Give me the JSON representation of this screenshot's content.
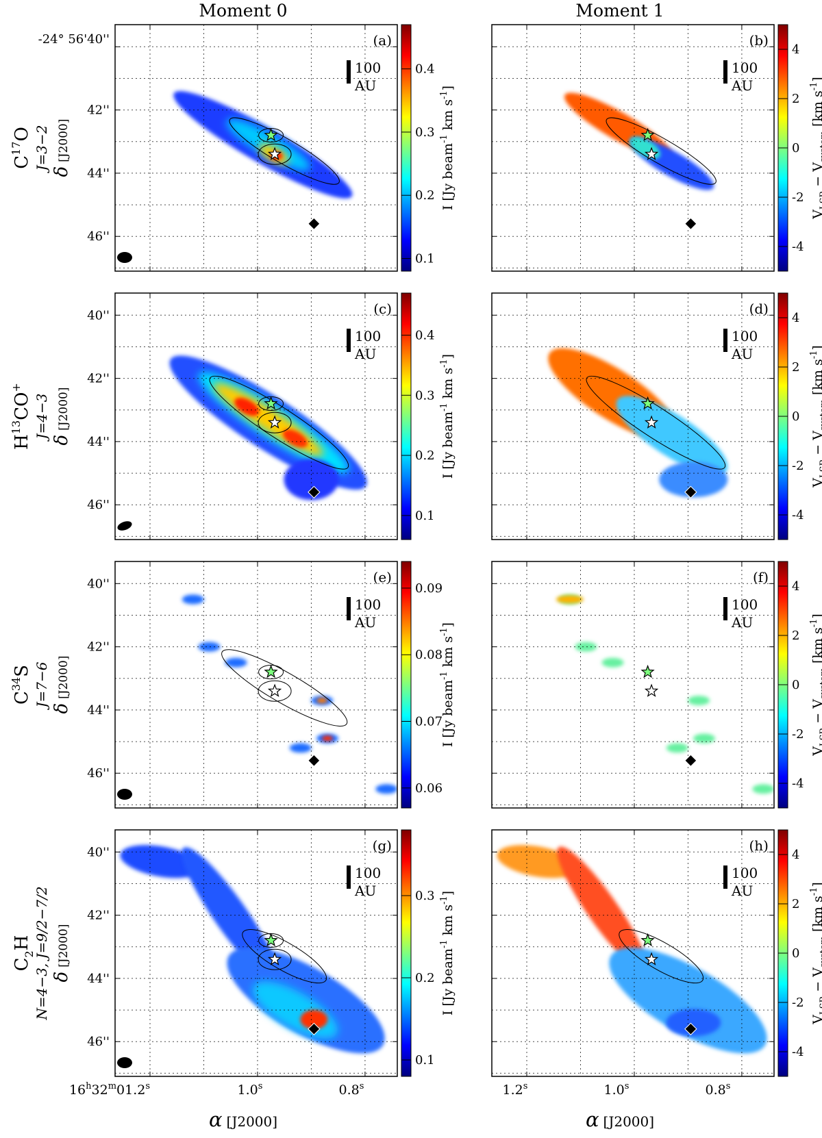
{
  "chart_data": {
    "type": "heatmap",
    "column_titles": [
      "Moment 0",
      "Moment 1"
    ],
    "x_axis": {
      "label": "α",
      "label_sub": "[J2000]",
      "left_tick_labels": {
        "prefix": "16",
        "h": "h",
        "mid": "32",
        "m": "m",
        "sec": "01.2",
        "s": "s",
        "t2": "1.0",
        "t3": "0.8"
      },
      "right_tick_labels": [
        "1.2",
        "1.0",
        "0.8"
      ],
      "ticks_s": [
        1.2,
        1.0,
        0.8
      ],
      "range_s": [
        1.265,
        0.74
      ]
    },
    "y_axis": {
      "label": "δ",
      "label_sub": "[J2000]",
      "dec_prefix": "-24° 56'40''",
      "ticks_arcsec": [
        40,
        42,
        44,
        46
      ],
      "tick_labels": [
        "40''",
        "42''",
        "44''",
        "46''"
      ],
      "range_arcsec": [
        39.3,
        47.1
      ]
    },
    "scale_bar": {
      "value": "100",
      "unit": "AU"
    },
    "moment0_colorbar_label": "I [Jy beam",
    "moment0_colorbar_label_mid": "-1",
    "moment0_colorbar_label_end": " km s",
    "moment0_colorbar_label_end2": "-1",
    "moment0_colorbar_label_close": "]",
    "moment1_colorbar_label": {
      "a": "V",
      "b": "LSR",
      "c": " − V",
      "d": "system",
      "e": " [km s",
      "f": "-1",
      "g": "]"
    },
    "moment1_colorbar": {
      "range": [
        -5,
        5
      ],
      "ticks": [
        "4",
        "2",
        "0",
        "-2",
        "-4"
      ],
      "tick_values": [
        4,
        2,
        0,
        -2,
        -4
      ]
    },
    "markers": [
      {
        "name": "source A (green star)",
        "ra_s": 0.975,
        "dec_arcsec": 42.8
      },
      {
        "name": "source B (white star)",
        "ra_s": 0.968,
        "dec_arcsec": 43.4
      },
      {
        "name": "diamond",
        "ra_s": 0.895,
        "dec_arcsec": 45.6
      }
    ],
    "rows": [
      {
        "line": {
          "a": "C",
          "b": "17",
          "c": "O"
        },
        "transition": "J=3−2",
        "moment0": {
          "panel": "(a)",
          "colorbar_ticks": [
            "0.4",
            "0.3",
            "0.2",
            "0.1"
          ],
          "tick_values": [
            0.4,
            0.3,
            0.2,
            0.1
          ],
          "range": [
            0.08,
            0.47
          ]
        },
        "moment1": {
          "panel": "(b)"
        }
      },
      {
        "line": {
          "a": "H",
          "b": "13",
          "c": "CO",
          "d": "+"
        },
        "transition": "J=4−3",
        "moment0": {
          "panel": "(c)",
          "colorbar_ticks": [
            "0.4",
            "0.3",
            "0.2",
            "0.1"
          ],
          "tick_values": [
            0.4,
            0.3,
            0.2,
            0.1
          ],
          "range": [
            0.06,
            0.47
          ]
        },
        "moment1": {
          "panel": "(d)"
        }
      },
      {
        "line": {
          "a": "C",
          "b": "34",
          "c": "S"
        },
        "transition": "J=7−6",
        "moment0": {
          "panel": "(e)",
          "colorbar_ticks": [
            "0.09",
            "0.08",
            "0.07",
            "0.06"
          ],
          "tick_values": [
            0.09,
            0.08,
            0.07,
            0.06
          ],
          "range": [
            0.057,
            0.094
          ]
        },
        "moment1": {
          "panel": "(f)"
        }
      },
      {
        "line": {
          "a": "C",
          "b": "2",
          "c": "H"
        },
        "transition": "N=4−3, J=9/2−7/2",
        "moment0": {
          "panel": "(g)",
          "colorbar_ticks": [
            "0.3",
            "0.2",
            "0.1"
          ],
          "tick_values": [
            0.3,
            0.2,
            0.1
          ],
          "range": [
            0.08,
            0.38
          ]
        },
        "moment1": {
          "panel": "(h)"
        }
      }
    ]
  }
}
